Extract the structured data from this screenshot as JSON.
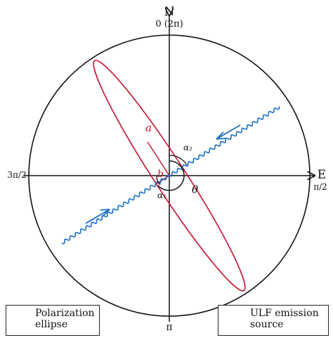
{
  "axes": {
    "north_letter": "N",
    "north_angle": "0 (2π)",
    "east_letter": "E",
    "east_angle": "π/2",
    "south_angle": "π",
    "west_angle": "3π/2"
  },
  "ellipse_labels": {
    "major_axis": "a",
    "minor_axis": "b"
  },
  "angle_labels": {
    "alpha1": "α₁",
    "alpha2": "α₂",
    "theta": "θ"
  },
  "legend": {
    "polarization_line1": "Polarization",
    "polarization_line2": "ellipse",
    "ulf_line1": "ULF emission",
    "ulf_line2": "source"
  },
  "colors": {
    "ellipse": "#c8102e",
    "wave": "#1a6fc4",
    "axis": "#111111"
  }
}
